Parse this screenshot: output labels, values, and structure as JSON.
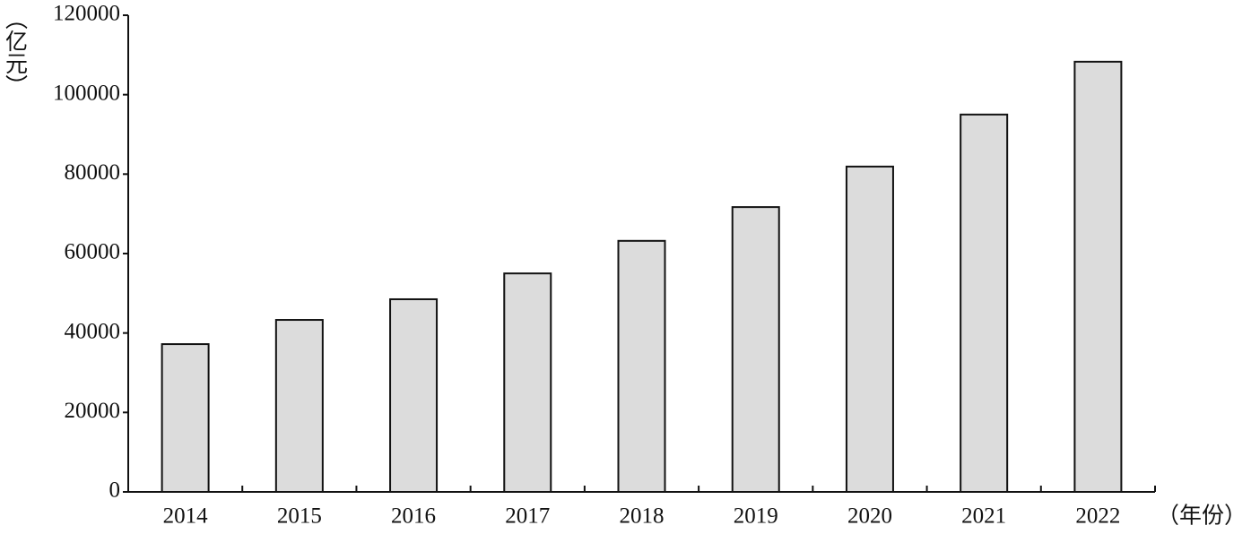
{
  "chart_data": {
    "type": "bar",
    "y_label": "（亿元）",
    "x_label": "（年份）",
    "categories": [
      "2014",
      "2015",
      "2016",
      "2017",
      "2018",
      "2019",
      "2020",
      "2021",
      "2022"
    ],
    "values": [
      37200,
      43300,
      48500,
      55000,
      63200,
      71700,
      81900,
      95000,
      108300
    ],
    "color": "#dcdcdc",
    "ylim": [
      0,
      120000
    ],
    "yticks": [
      0,
      20000,
      40000,
      60000,
      80000,
      100000,
      120000
    ],
    "grid": false
  }
}
